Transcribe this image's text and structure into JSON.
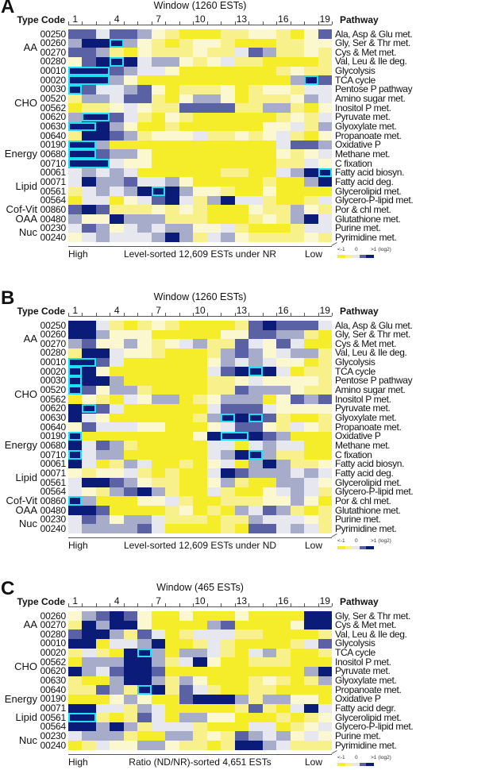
{
  "legend": {
    "low": "<-1",
    "mid": "0",
    "high": ">1 (log2)"
  },
  "colors": {
    "levels": [
      "#f5ec2a",
      "#f8f08a",
      "#fbf8cf",
      "#e6e7ef",
      "#a8accb",
      "#5a62a5",
      "#0b1c78"
    ],
    "highlight": "#1ee0f0"
  },
  "chart_data": [
    {
      "type": "heatmap",
      "letter": "A",
      "title": "Window (1260 ESTs)",
      "type_code_label": "Type Code",
      "pathway_label": "Pathway",
      "tick_labels": [
        "1",
        "4",
        "7",
        "10",
        "13",
        "16",
        "19"
      ],
      "x_left": "High",
      "xlabel": "Level-sorted 12,609 ESTs under NR",
      "x_right": "Low",
      "level_encoding": "digits 0-6 per window: 0 = <-1 (yellow), 3 = 0, 6 = >1 (navy), log2",
      "rows": [
        {
          "code": "00250",
          "pathway": "Ala, Asp & Glu met.",
          "levels": "5535542100011221025"
        },
        {
          "code": "00260",
          "pathway": "Gly, Ser & Thr met.",
          "levels": "4666421012210001122"
        },
        {
          "code": "00270",
          "pathway": "Cys & Met met.",
          "levels": "5541021112113541121"
        },
        {
          "code": "00280",
          "pathway": "Val, Leu & Ile deg.",
          "levels": "2566634421231100001"
        },
        {
          "code": "00010",
          "pathway": "Glycolysis",
          "levels": "6665433200000001211"
        },
        {
          "code": "00020",
          "pathway": "TCA cycle",
          "levels": "6664200000000000465"
        },
        {
          "code": "00030",
          "pathway": "Pentose P pathway",
          "levels": "6533452011120122133"
        },
        {
          "code": "00520",
          "pathway": "Amino sugar met.",
          "levels": "1443551024420111243"
        },
        {
          "code": "00562",
          "pathway": "Inositol P met.",
          "levels": "0112321155551144102"
        },
        {
          "code": "00620",
          "pathway": "Pyruvate met.",
          "levels": "4665310210000001213"
        },
        {
          "code": "00630",
          "pathway": "Glyoxylate met.",
          "levels": "6664200100000022314"
        },
        {
          "code": "00640",
          "pathway": "Propanoate met.",
          "levels": "1665412223112123102"
        },
        {
          "code": "00190",
          "pathway": "Oxidative P",
          "levels": "6640000000000003554"
        },
        {
          "code": "00680",
          "pathway": "Methane met.",
          "levels": "6654420000000002123"
        },
        {
          "code": "00710",
          "pathway": "C fixation",
          "levels": "6663220000000001132"
        },
        {
          "code": "00061",
          "pathway": "Fatty acid biosyn.",
          "levels": "3434300000011003466"
        },
        {
          "code": "00071",
          "pathway": "Fatty acid deg.",
          "levels": "3644533420000010046"
        },
        {
          "code": "00561",
          "pathway": "Glycerolipid met.",
          "levels": "1343466642210020000"
        },
        {
          "code": "00564",
          "pathway": "Glycero-P-lipid met.",
          "levels": "0330235631463310013"
        },
        {
          "code": "00860",
          "pathway": "Por & chl met.",
          "levels": "5651112121000211421"
        },
        {
          "code": "00480",
          "pathway": "Glutathione met.",
          "levels": "4226444111000121463"
        },
        {
          "code": "00230",
          "pathway": "Purine met.",
          "levels": "3542343442231000133"
        },
        {
          "code": "00240",
          "pathway": "Pyrimidine met.",
          "levels": "2343334641342111121"
        }
      ],
      "groups": [
        {
          "label": "AA",
          "first_row": 0,
          "last_row": 3
        },
        {
          "label": "CHO",
          "first_row": 4,
          "last_row": 11
        },
        {
          "label": "Energy",
          "first_row": 12,
          "last_row": 14
        },
        {
          "label": "Lipid",
          "first_row": 15,
          "last_row": 18
        },
        {
          "label": "Cof-Vit",
          "first_row": 19,
          "last_row": 19
        },
        {
          "label": "OAA",
          "first_row": 20,
          "last_row": 20
        },
        {
          "label": "Nuc",
          "first_row": 21,
          "last_row": 22
        }
      ],
      "highlights": [
        {
          "row": 1,
          "from": 4,
          "to": 4
        },
        {
          "row": 3,
          "from": 4,
          "to": 4
        },
        {
          "row": 4,
          "from": 1,
          "to": 3
        },
        {
          "row": 5,
          "from": 1,
          "to": 3
        },
        {
          "row": 5,
          "from": 18,
          "to": 18
        },
        {
          "row": 6,
          "from": 1,
          "to": 1
        },
        {
          "row": 9,
          "from": 2,
          "to": 3
        },
        {
          "row": 10,
          "from": 1,
          "to": 2
        },
        {
          "row": 12,
          "from": 1,
          "to": 2
        },
        {
          "row": 13,
          "from": 1,
          "to": 2
        },
        {
          "row": 14,
          "from": 1,
          "to": 3
        },
        {
          "row": 15,
          "from": 19,
          "to": 19
        },
        {
          "row": 17,
          "from": 7,
          "to": 7
        }
      ]
    },
    {
      "type": "heatmap",
      "letter": "B",
      "title": "Window (1260 ESTs)",
      "type_code_label": "Type Code",
      "pathway_label": "Pathway",
      "tick_labels": [
        "1",
        "4",
        "7",
        "10",
        "13",
        "16",
        "19"
      ],
      "x_left": "High",
      "xlabel": "Level-sorted 12,609 ESTs under ND",
      "x_right": "Low",
      "level_encoding": "digits 0-6 per window: 0 = <-1 (yellow), 3 = 0, 6 = >1 (navy), log2",
      "rows": [
        {
          "code": "00250",
          "pathway": "Ala, Asp & Glu met.",
          "levels": "6631012100001565553"
        },
        {
          "code": "00260",
          "pathway": "Gly, Ser & Thr met.",
          "levels": "6642220000022554410"
        },
        {
          "code": "00270",
          "pathway": "Cys & Met met.",
          "levels": "4522421234115325300"
        },
        {
          "code": "00280",
          "pathway": "Val, Leu & Ile deg.",
          "levels": "1663221000145423441"
        },
        {
          "code": "00010",
          "pathway": "Glycolysis",
          "levels": "6653000000243432201"
        },
        {
          "code": "00020",
          "pathway": "TCA cycle",
          "levels": "6620000000356663011"
        },
        {
          "code": "00030",
          "pathway": "Pentose P pathway",
          "levels": "6664000000112322221"
        },
        {
          "code": "00520",
          "pathway": "Amino sugar met.",
          "levels": "6524410000115444211"
        },
        {
          "code": "00562",
          "pathway": "Inositol P met.",
          "levels": "0210324401244402545"
        },
        {
          "code": "00620",
          "pathway": "Pyruvate met.",
          "levels": "6653000000355532222"
        },
        {
          "code": "00630",
          "pathway": "Glyoxylate met.",
          "levels": "6320000001466651001"
        },
        {
          "code": "00640",
          "pathway": "Propanoate met.",
          "levels": "2533322000235521321"
        },
        {
          "code": "00190",
          "pathway": "Oxidative P",
          "levels": "6000000002666654000"
        },
        {
          "code": "00680",
          "pathway": "Methane met.",
          "levels": "6354100000330343300"
        },
        {
          "code": "00710",
          "pathway": "C fixation",
          "levels": "6344000000346641100"
        },
        {
          "code": "00061",
          "pathway": "Fatty acid biosyn.",
          "levels": "6301430010230464112"
        },
        {
          "code": "00071",
          "pathway": "Fatty acid deg.",
          "levels": "2122310100365444343"
        },
        {
          "code": "00561",
          "pathway": "Glycerolipid met.",
          "levels": "3665421100241004432"
        },
        {
          "code": "00564",
          "pathway": "Glycero-P-lipid met.",
          "levels": "3214564100310023431"
        },
        {
          "code": "00860",
          "pathway": "Por & chl met.",
          "levels": "6400022310011122420"
        },
        {
          "code": "00480",
          "pathway": "Glutathione met.",
          "levels": "6650000120104354101"
        },
        {
          "code": "00230",
          "pathway": "Purine met.",
          "levels": "3542443111011433321"
        },
        {
          "code": "00240",
          "pathway": "Pyrimidine met.",
          "levels": "3444453000010553431"
        }
      ],
      "groups": [
        {
          "label": "AA",
          "first_row": 0,
          "last_row": 3
        },
        {
          "label": "CHO",
          "first_row": 4,
          "last_row": 11
        },
        {
          "label": "Energy",
          "first_row": 12,
          "last_row": 14
        },
        {
          "label": "Lipid",
          "first_row": 15,
          "last_row": 18
        },
        {
          "label": "Cof-Vit",
          "first_row": 19,
          "last_row": 19
        },
        {
          "label": "OAA",
          "first_row": 20,
          "last_row": 20
        },
        {
          "label": "Nuc",
          "first_row": 21,
          "last_row": 22
        }
      ],
      "highlights": [
        {
          "row": 4,
          "from": 1,
          "to": 2
        },
        {
          "row": 5,
          "from": 1,
          "to": 1
        },
        {
          "row": 5,
          "from": 14,
          "to": 14
        },
        {
          "row": 6,
          "from": 1,
          "to": 1
        },
        {
          "row": 7,
          "from": 1,
          "to": 1
        },
        {
          "row": 9,
          "from": 2,
          "to": 2
        },
        {
          "row": 10,
          "from": 12,
          "to": 12
        },
        {
          "row": 10,
          "from": 14,
          "to": 14
        },
        {
          "row": 12,
          "from": 1,
          "to": 1
        },
        {
          "row": 12,
          "from": 12,
          "to": 13
        },
        {
          "row": 14,
          "from": 1,
          "to": 1
        },
        {
          "row": 14,
          "from": 14,
          "to": 14
        },
        {
          "row": 19,
          "from": 1,
          "to": 1
        }
      ]
    },
    {
      "type": "heatmap",
      "letter": "C",
      "title": "Window (465 ESTs)",
      "type_code_label": "Type Code",
      "pathway_label": "Pathway",
      "tick_labels": [
        "1",
        "4",
        "7",
        "10",
        "13",
        "16",
        "19"
      ],
      "x_left": "High",
      "xlabel": "Ratio (ND/NR)-sorted 4,651 ESTs",
      "x_right": "Low",
      "level_encoding": "digits 0-6 per window: 0 = <-1 (yellow), 3 = 0, 6 = >1 (navy), log2",
      "rows": [
        {
          "code": "00260",
          "pathway": "Gly, Ser & Thr met.",
          "levels": "2456520020002000066"
        },
        {
          "code": "00270",
          "pathway": "Cys & Met met.",
          "levels": "1646620000450000266"
        },
        {
          "code": "00280",
          "pathway": "Val, Leu & Ile deg.",
          "levels": "5664153013331100001"
        },
        {
          "code": "00010",
          "pathway": "Glycolysis",
          "levels": "6603346001310000135"
        },
        {
          "code": "00020",
          "pathway": "TCA cycle",
          "levels": "1310664044310341001"
        },
        {
          "code": "00562",
          "pathway": "Inositol P met.",
          "levels": "0444664136200111000"
        },
        {
          "code": "00620",
          "pathway": "Pyruvate met.",
          "levels": "6435665000000000046"
        },
        {
          "code": "00630",
          "pathway": "Glyoxylate met.",
          "levels": "1004664142000121014"
        },
        {
          "code": "00640",
          "pathway": "Propanoate met.",
          "levels": "1154166153100110000"
        },
        {
          "code": "00190",
          "pathway": "Oxidative P",
          "levels": "0002420056664144220"
        },
        {
          "code": "00071",
          "pathway": "Fatty acid degr.",
          "levels": "6633143000001510363"
        },
        {
          "code": "00561",
          "pathway": "Glycerolipid met.",
          "levels": "6610153044220001012"
        },
        {
          "code": "00564",
          "pathway": "Glycero-P-lipid met.",
          "levels": "6646413331000330123"
        },
        {
          "code": "00230",
          "pathway": "Purine met.",
          "levels": "3444100441215434232"
        },
        {
          "code": "00240",
          "pathway": "Pyrimidine met.",
          "levels": "0132244211016643111"
        }
      ],
      "groups": [
        {
          "label": "AA",
          "first_row": 0,
          "last_row": 2
        },
        {
          "label": "CHO",
          "first_row": 3,
          "last_row": 8
        },
        {
          "label": "Energy",
          "first_row": 9,
          "last_row": 9
        },
        {
          "label": "Lipid",
          "first_row": 10,
          "last_row": 12
        },
        {
          "label": "Nuc",
          "first_row": 13,
          "last_row": 14
        }
      ],
      "highlights": [
        {
          "row": 4,
          "from": 6,
          "to": 6
        },
        {
          "row": 8,
          "from": 6,
          "to": 6
        },
        {
          "row": 11,
          "from": 1,
          "to": 2
        }
      ]
    }
  ]
}
